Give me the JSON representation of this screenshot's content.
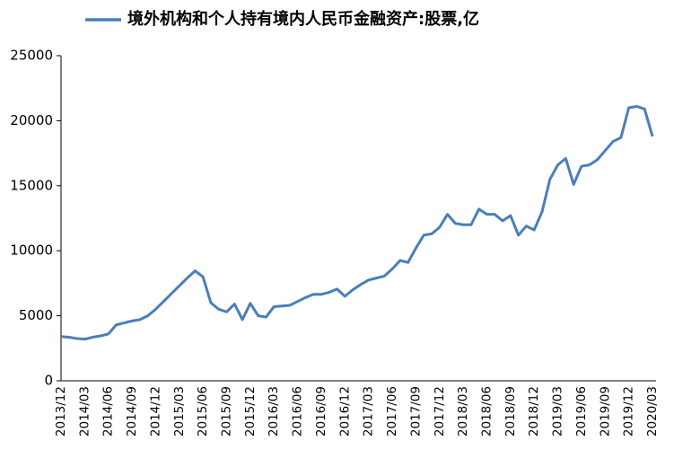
{
  "chart_data": {
    "type": "line",
    "categories": [
      "2013/12",
      null,
      null,
      "2014/03",
      null,
      null,
      "2014/06",
      null,
      null,
      "2014/09",
      null,
      null,
      "2014/12",
      null,
      null,
      "2015/03",
      null,
      null,
      "2015/06",
      null,
      null,
      "2015/09",
      null,
      null,
      "2015/12",
      null,
      null,
      "2016/03",
      null,
      null,
      "2016/06",
      null,
      null,
      "2016/09",
      null,
      null,
      "2016/12",
      null,
      null,
      "2017/03",
      null,
      null,
      "2017/06",
      null,
      null,
      "2017/09",
      null,
      null,
      "2017/12",
      null,
      null,
      "2018/03",
      null,
      null,
      "2018/06",
      null,
      null,
      "2018/09",
      null,
      null,
      "2018/12",
      null,
      null,
      "2019/03",
      null,
      null,
      "2019/06",
      null,
      null,
      "2019/09",
      null,
      null,
      "2019/12",
      null,
      null,
      "2020/03"
    ],
    "series": [
      {
        "name": "境外机构和个人持有境内人民币金融资产:股票,亿",
        "color": "#4a7ebb",
        "values": [
          3400,
          3350,
          3250,
          3200,
          3350,
          3450,
          3600,
          4300,
          4450,
          4600,
          4700,
          5000,
          5500,
          6100,
          6700,
          7300,
          7900,
          8450,
          8000,
          6000,
          5500,
          5300,
          5900,
          4700,
          5950,
          5000,
          4900,
          5700,
          5750,
          5800,
          6100,
          6400,
          6650,
          6650,
          6800,
          7050,
          6500,
          7000,
          7400,
          7750,
          7900,
          8050,
          8600,
          9250,
          9100,
          10200,
          11200,
          11300,
          11800,
          12800,
          12100,
          12000,
          12000,
          13200,
          12800,
          12800,
          12300,
          12700,
          11200,
          11900,
          11600,
          13000,
          15500,
          16600,
          17100,
          15100,
          16500,
          16600,
          17000,
          17700,
          18400,
          18700,
          21000,
          21100,
          20900,
          18800
        ]
      }
    ],
    "ylim": [
      0,
      25000
    ],
    "yticks": [
      0,
      5000,
      10000,
      15000,
      20000,
      25000
    ]
  }
}
